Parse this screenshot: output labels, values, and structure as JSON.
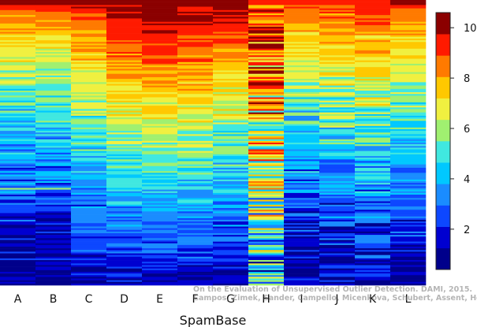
{
  "chart_data": {
    "type": "heatmap",
    "title": "",
    "xlabel": "SpamBase",
    "ylabel": "",
    "columns": [
      "A",
      "B",
      "C",
      "D",
      "E",
      "F",
      "G",
      "H",
      "I",
      "J",
      "K",
      "L"
    ],
    "row_count": 170,
    "value_range": [
      0.4,
      10.6
    ],
    "colorbar": {
      "ticks": [
        2,
        4,
        6,
        8,
        10
      ],
      "range": [
        0.4,
        10.6
      ],
      "bands": [
        "#00008b",
        "#0000d0",
        "#0d47ff",
        "#1a8cff",
        "#00c8ff",
        "#40e8e0",
        "#a0f070",
        "#f0f040",
        "#ffc800",
        "#ff7a00",
        "#ff1a00",
        "#8b0000"
      ]
    },
    "column_profiles": [
      {
        "top": 10.0,
        "bottom": 0.6,
        "shape": 1.6,
        "noise": 1.3,
        "stripe": "yellow"
      },
      {
        "top": 10.0,
        "bottom": 0.6,
        "shape": 1.6,
        "noise": 1.3,
        "stripe": "yellow"
      },
      {
        "top": 9.8,
        "bottom": 1.0,
        "shape": 1.2,
        "noise": 1.1
      },
      {
        "top": 10.2,
        "bottom": 1.3,
        "shape": 1.0,
        "noise": 1.0
      },
      {
        "top": 10.5,
        "bottom": 1.3,
        "shape": 1.0,
        "noise": 0.9
      },
      {
        "top": 10.2,
        "bottom": 1.3,
        "shape": 1.0,
        "noise": 1.0
      },
      {
        "top": 10.3,
        "bottom": 1.0,
        "shape": 1.1,
        "noise": 1.1
      },
      {
        "top": 9.0,
        "bottom": 3.5,
        "shape": 0.7,
        "noise": 3.0
      },
      {
        "top": 9.5,
        "bottom": 0.7,
        "shape": 1.4,
        "noise": 1.4
      },
      {
        "top": 9.5,
        "bottom": 0.8,
        "shape": 1.3,
        "noise": 1.6
      },
      {
        "top": 9.5,
        "bottom": 1.0,
        "shape": 1.2,
        "noise": 1.6
      },
      {
        "top": 9.8,
        "bottom": 0.8,
        "shape": 1.4,
        "noise": 1.1
      }
    ]
  },
  "watermark": {
    "line1": "On the Evaluation of Unsupervised Outlier Detection. DAMI, 2015.",
    "line2": "Campos, Zimek, Sander, Campello, Micenkova, Schubert, Assent, Houle"
  }
}
